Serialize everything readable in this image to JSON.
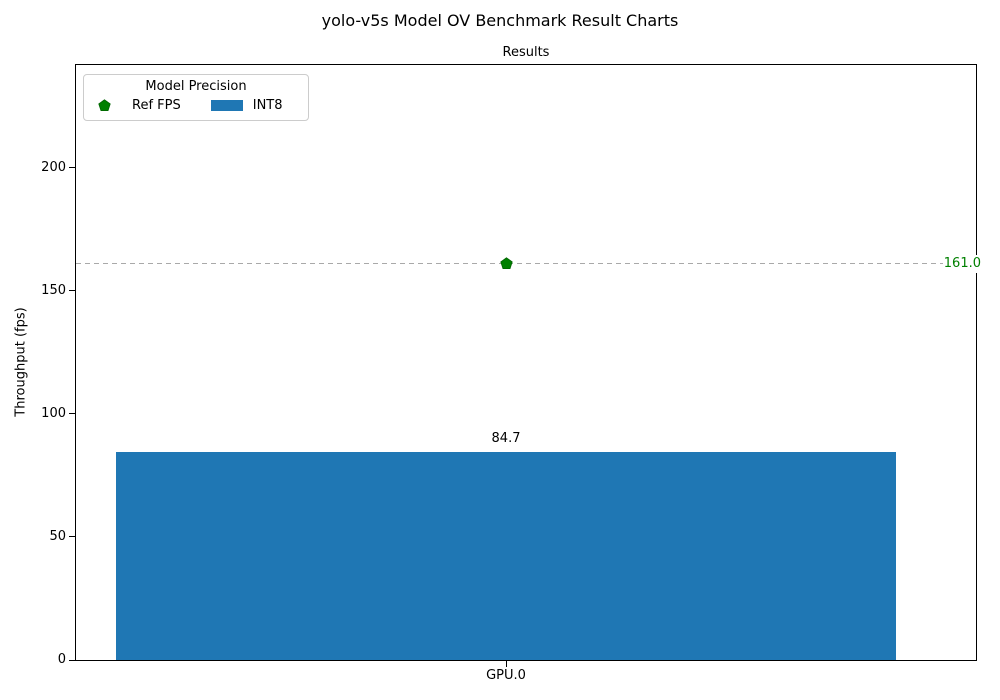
{
  "chart_data": {
    "type": "bar",
    "title": "yolo-v5s Model OV Benchmark Result Charts",
    "axes_title": "Results",
    "categories": [
      "GPU.0"
    ],
    "series": [
      {
        "name": "INT8",
        "kind": "bar",
        "values": [
          84.7
        ],
        "value_label": "84.7",
        "color": "#1f77b4"
      },
      {
        "name": "Ref FPS",
        "kind": "reference-line",
        "values": [
          161.0
        ],
        "value_label": "161.0",
        "color": "#008000",
        "marker": "pentagon",
        "line_style": "dashed",
        "line_color": "#a9a9a9"
      }
    ],
    "xlabel": "",
    "ylabel": "Throughput (fps)",
    "yticks": [
      0,
      50,
      100,
      150,
      200
    ],
    "ytick_labels": [
      "0",
      "50",
      "100",
      "150",
      "200"
    ],
    "ylim": [
      0,
      241.7
    ],
    "grid": false,
    "legend": {
      "title": "Model Precision",
      "position": "upper left",
      "entries": [
        "Ref FPS",
        "INT8"
      ]
    }
  }
}
